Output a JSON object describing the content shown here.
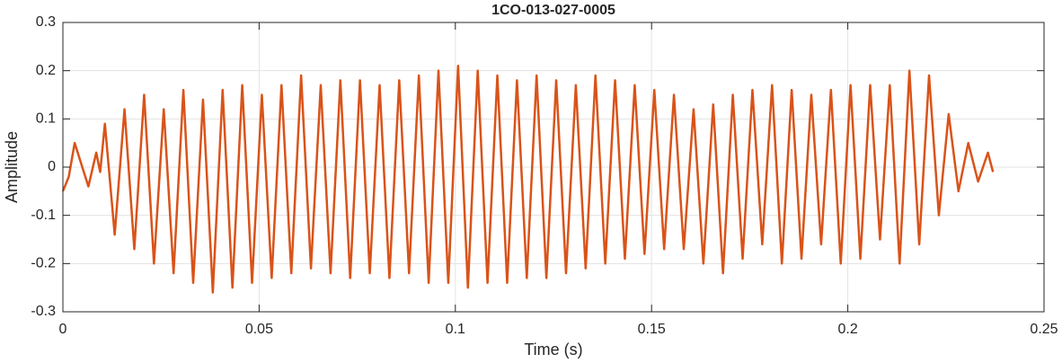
{
  "chart_data": {
    "type": "line",
    "title": "1CO-013-027-0005",
    "xlabel": "Time (s)",
    "ylabel": "Amplitude",
    "color": "#d95319",
    "grid": true,
    "xlim": [
      0,
      0.25
    ],
    "xticks": [
      0,
      0.05,
      0.1,
      0.15,
      0.2,
      0.25
    ],
    "ylim": [
      -0.3,
      0.3
    ],
    "yticks": [
      -0.3,
      -0.2,
      -0.1,
      0,
      0.1,
      0.2,
      0.3
    ],
    "x": [
      0,
      0.0015,
      0.003,
      0.0065,
      0.0085,
      0.0095,
      0.0107,
      0.0132,
      0.0157,
      0.0182,
      0.0207,
      0.0232,
      0.0257,
      0.0282,
      0.0307,
      0.0332,
      0.0357,
      0.0382,
      0.0407,
      0.0432,
      0.0457,
      0.0482,
      0.0507,
      0.0532,
      0.0557,
      0.0582,
      0.0607,
      0.0632,
      0.0657,
      0.0682,
      0.0707,
      0.0732,
      0.0757,
      0.0782,
      0.0807,
      0.0832,
      0.0857,
      0.0882,
      0.0907,
      0.0932,
      0.0957,
      0.0982,
      0.1007,
      0.1032,
      0.1057,
      0.1082,
      0.1107,
      0.1132,
      0.1157,
      0.1182,
      0.1207,
      0.1232,
      0.1257,
      0.1282,
      0.1307,
      0.1332,
      0.1357,
      0.1382,
      0.1407,
      0.1432,
      0.1457,
      0.1482,
      0.1507,
      0.1532,
      0.1557,
      0.1582,
      0.1607,
      0.1632,
      0.1657,
      0.1682,
      0.1707,
      0.1732,
      0.1757,
      0.1782,
      0.1807,
      0.1832,
      0.1857,
      0.1882,
      0.1907,
      0.1932,
      0.1957,
      0.1982,
      0.2007,
      0.2032,
      0.2057,
      0.2082,
      0.2107,
      0.2132,
      0.2157,
      0.2182,
      0.2207,
      0.2232,
      0.2257,
      0.2282,
      0.2307,
      0.2332,
      0.2357,
      0.237
    ],
    "values": [
      -0.05,
      -0.02,
      0.05,
      -0.04,
      0.03,
      -0.01,
      0.09,
      -0.14,
      0.12,
      -0.17,
      0.15,
      -0.2,
      0.12,
      -0.22,
      0.16,
      -0.24,
      0.14,
      -0.26,
      0.16,
      -0.25,
      0.17,
      -0.24,
      0.15,
      -0.23,
      0.17,
      -0.22,
      0.19,
      -0.21,
      0.17,
      -0.22,
      0.18,
      -0.23,
      0.18,
      -0.22,
      0.17,
      -0.23,
      0.18,
      -0.22,
      0.19,
      -0.24,
      0.2,
      -0.24,
      0.21,
      -0.25,
      0.2,
      -0.24,
      0.19,
      -0.24,
      0.18,
      -0.23,
      0.19,
      -0.23,
      0.18,
      -0.22,
      0.17,
      -0.21,
      0.19,
      -0.2,
      0.18,
      -0.19,
      0.17,
      -0.18,
      0.16,
      -0.17,
      0.15,
      -0.17,
      0.12,
      -0.2,
      0.13,
      -0.22,
      0.15,
      -0.19,
      0.16,
      -0.16,
      0.17,
      -0.2,
      0.16,
      -0.19,
      0.15,
      -0.16,
      0.16,
      -0.2,
      0.17,
      -0.19,
      0.17,
      -0.15,
      0.17,
      -0.2,
      0.2,
      -0.16,
      0.19,
      -0.1,
      0.11,
      -0.05,
      0.05,
      -0.03,
      0.03,
      -0.01
    ]
  }
}
